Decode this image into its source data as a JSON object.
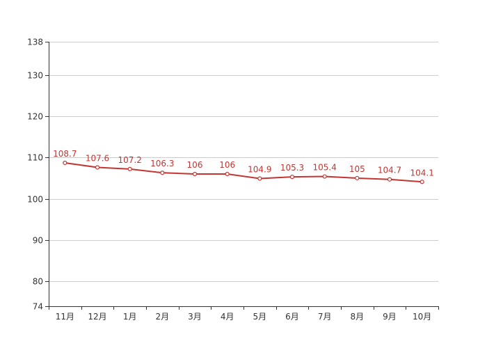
{
  "chart_data": {
    "type": "line",
    "categories": [
      "11月",
      "12月",
      "1月",
      "2月",
      "3月",
      "4月",
      "5月",
      "6月",
      "7月",
      "8月",
      "9月",
      "10月"
    ],
    "series": [
      {
        "values": [
          108.7,
          107.6,
          107.2,
          106.3,
          106,
          106,
          104.9,
          105.3,
          105.4,
          105,
          104.7,
          104.1
        ],
        "labels": [
          "108.7",
          "107.6",
          "107.2",
          "106.3",
          "106",
          "106",
          "104.9",
          "105.3",
          "105.4",
          "105",
          "104.7",
          "104.1"
        ],
        "color": "#c23531"
      }
    ],
    "yticks": [
      74,
      80,
      90,
      100,
      110,
      120,
      130,
      138
    ],
    "ylim": [
      74,
      138
    ],
    "grid": true,
    "legend": false
  }
}
